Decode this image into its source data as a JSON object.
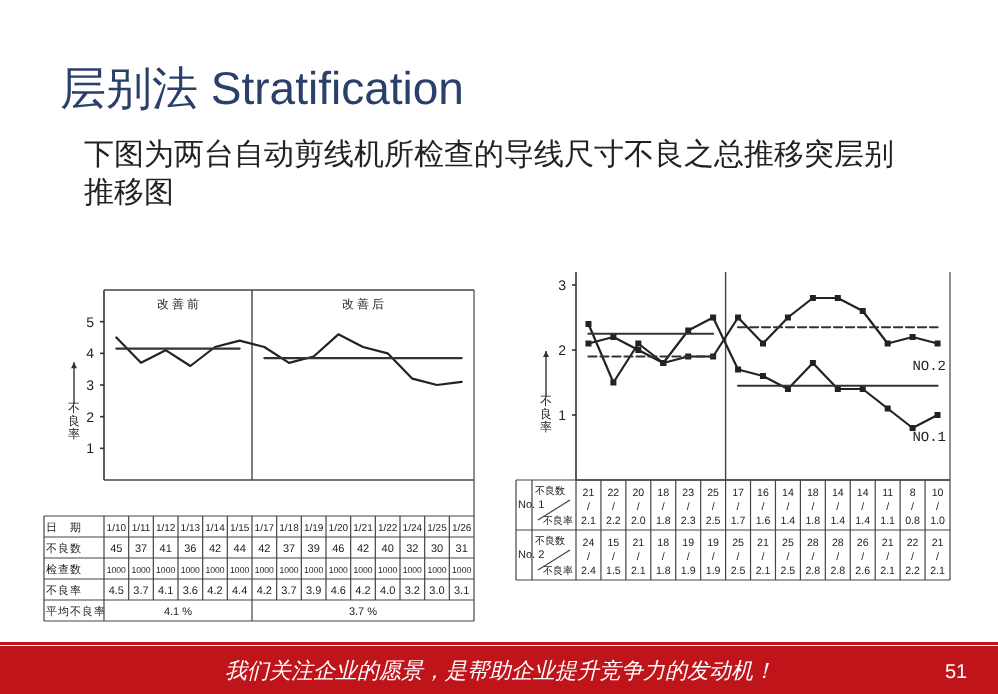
{
  "chart_data": [
    {
      "type": "other",
      "title": "层别法 Stratification",
      "subtitle": "下图为两台自动剪线机所检查的导线尺寸不良之总推移突层别推移图",
      "annotations": [
        "我们关注企业的愿景，是帮助企业提升竞争力的发动机！",
        "51"
      ]
    },
    {
      "type": "line",
      "categories": [
        "1/10",
        "1/11",
        "1/12",
        "1/13",
        "1/14",
        "1/15",
        "1/17",
        "1/18",
        "1/19",
        "1/20",
        "1/21",
        "1/22",
        "1/24",
        "1/25",
        "1/26"
      ],
      "series": [
        {
          "color": "#222222",
          "values": [
            4.5,
            3.7,
            4.1,
            3.6,
            4.2,
            4.4,
            4.2,
            3.7,
            3.9,
            4.6,
            4.2,
            4.0,
            3.2,
            3.0,
            3.1
          ],
          "value_labels": [
            "4.5",
            "3.7",
            "4.1",
            "3.6",
            "4.2",
            "4.4",
            "4.2",
            "3.7",
            "3.9",
            "4.6",
            "4.2",
            "4.0",
            "3.2",
            "3.0",
            "3.1"
          ]
        },
        {
          "color": "#333333",
          "values": [
            4.15,
            4.15,
            4.15,
            4.15,
            4.15,
            4.15,
            null,
            null,
            null,
            null,
            null,
            null,
            null,
            null,
            null
          ]
        },
        {
          "color": "#333333",
          "values": [
            null,
            null,
            null,
            null,
            null,
            null,
            3.85,
            3.85,
            3.85,
            3.85,
            3.85,
            3.85,
            3.85,
            3.85,
            3.85
          ]
        }
      ],
      "ylim": [
        0,
        6
      ],
      "yticks": [
        1,
        2,
        3,
        4,
        5
      ],
      "ylabel": "不良率",
      "marker": "none",
      "line_style": "solid",
      "grid": false,
      "annotations": [
        "改 善 前",
        "改 善 后",
        "日　期",
        "不良数",
        "检查数",
        "不良率",
        "平均不良率",
        "45",
        "37",
        "41",
        "36",
        "42",
        "44",
        "42",
        "37",
        "39",
        "46",
        "42",
        "40",
        "32",
        "30",
        "31",
        "1000",
        "1000",
        "1000",
        "1000",
        "1000",
        "1000",
        "1000",
        "1000",
        "1000",
        "1000",
        "1000",
        "1000",
        "1000",
        "1000",
        "1000",
        "4.1 %",
        "3.7 %"
      ]
    },
    {
      "type": "line",
      "categories": [
        null,
        null,
        null,
        null,
        null,
        null,
        null,
        null,
        null,
        null,
        null,
        null,
        null,
        null,
        null
      ],
      "series": [
        {
          "name": "NO.1",
          "color": "#222222",
          "marker": "square",
          "values": [
            2.1,
            2.2,
            2.0,
            1.8,
            2.3,
            2.5,
            1.7,
            1.6,
            1.4,
            1.8,
            1.4,
            1.4,
            1.1,
            0.8,
            1.0
          ],
          "value_labels": [
            "21/2.1",
            "22/2.2",
            "20/2.0",
            "18/1.8",
            "23/2.3",
            "25/2.5",
            "17/1.7",
            "16/1.6",
            "14/1.4",
            "18/1.8",
            "14/1.4",
            "14/1.4",
            "11/1.1",
            "8/0.8",
            "10/1.0"
          ]
        },
        {
          "name": "NO.2",
          "color": "#222222",
          "marker": "square",
          "values": [
            2.4,
            1.5,
            2.1,
            1.8,
            1.9,
            1.9,
            2.5,
            2.1,
            2.5,
            2.8,
            2.8,
            2.6,
            2.1,
            2.2,
            2.1
          ],
          "value_labels": [
            "24/2.4",
            "15/1.5",
            "21/2.1",
            "18/1.8",
            "19/1.9",
            "19/1.9",
            "25/2.5",
            "21/2.1",
            "25/2.5",
            "28/2.8",
            "28/2.8",
            "26/2.6",
            "21/2.1",
            "22/2.2",
            "21/2.1"
          ]
        },
        {
          "color": "#333333",
          "marker": "none",
          "line_style": "solid",
          "values": [
            2.25,
            2.25,
            2.25,
            2.25,
            2.25,
            2.25,
            null,
            null,
            null,
            null,
            null,
            null,
            null,
            null,
            null
          ]
        },
        {
          "color": "#333333",
          "marker": "none",
          "line_style": "dashed",
          "values": [
            1.9,
            1.9,
            1.9,
            1.9,
            1.9,
            1.9,
            null,
            null,
            null,
            null,
            null,
            null,
            null,
            null,
            null
          ]
        },
        {
          "color": "#333333",
          "marker": "none",
          "line_style": "dashed",
          "values": [
            null,
            null,
            null,
            null,
            null,
            null,
            2.35,
            2.35,
            2.35,
            2.35,
            2.35,
            2.35,
            2.35,
            2.35,
            2.35
          ]
        },
        {
          "color": "#333333",
          "marker": "none",
          "line_style": "solid",
          "values": [
            null,
            null,
            null,
            null,
            null,
            null,
            1.45,
            1.45,
            1.45,
            1.45,
            1.45,
            1.45,
            1.45,
            1.45,
            1.45
          ]
        }
      ],
      "ylim": [
        0,
        3.2
      ],
      "yticks": [
        1,
        2,
        3
      ],
      "ylabel": "不良率",
      "line_style": "solid",
      "grid": false,
      "annotations": [
        "No. 1",
        "No. 2",
        "不良数",
        "不良率",
        "不良数",
        "不良率"
      ]
    }
  ]
}
